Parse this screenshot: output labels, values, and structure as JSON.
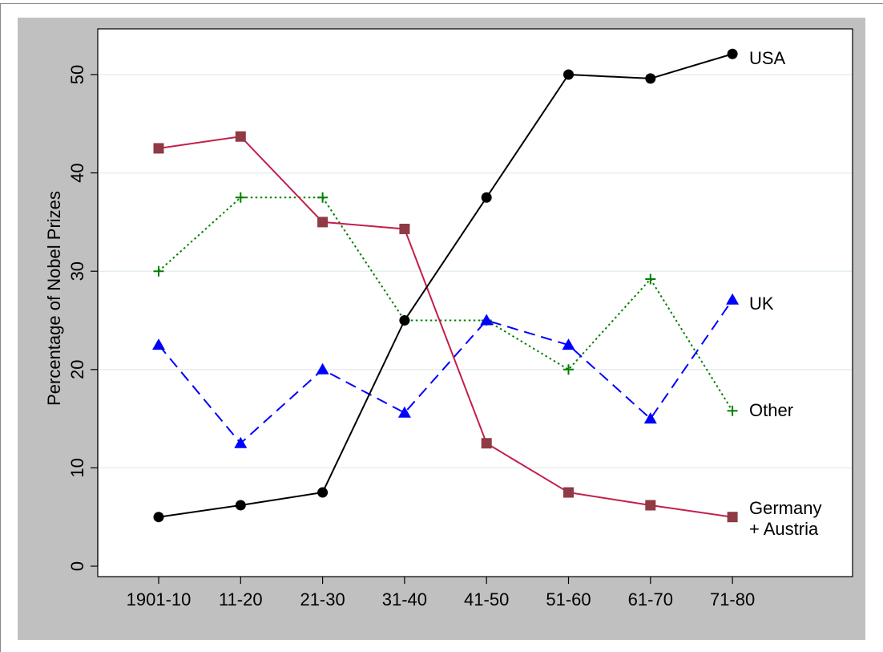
{
  "chart_data": {
    "type": "line",
    "title": "",
    "xlabel": "",
    "ylabel": "Percentage of Nobel Prizes",
    "categories": [
      "1901-10",
      "11-20",
      "21-30",
      "31-40",
      "41-50",
      "51-60",
      "61-70",
      "71-80"
    ],
    "ylim": [
      0,
      53
    ],
    "yticks": [
      0,
      10,
      20,
      30,
      40,
      50
    ],
    "grid": true,
    "legend": "none",
    "colors": {
      "outer_background": "#c0c0c0",
      "plot_background": "#ffffff",
      "gridline": "#e6efef"
    },
    "series": [
      {
        "key": "usa",
        "label_lines": [
          "USA"
        ],
        "values": [
          5,
          6.2,
          7.5,
          25,
          37.5,
          50,
          49.6,
          52.1
        ],
        "color": "#000000",
        "marker": "circle",
        "line_style": "solid"
      },
      {
        "key": "germany",
        "label_lines": [
          "Germany",
          "+ Austria"
        ],
        "values": [
          42.5,
          43.7,
          35,
          34.3,
          12.5,
          7.5,
          6.2,
          5
        ],
        "color": "#c41e4a",
        "marker_color": "#8f3a44",
        "marker": "square",
        "line_style": "solid"
      },
      {
        "key": "uk",
        "label_lines": [
          "UK"
        ],
        "values": [
          22.5,
          12.5,
          20,
          15.6,
          25,
          22.5,
          15,
          27.1
        ],
        "color": "#0000ff",
        "marker": "triangle",
        "line_style": "dashed"
      },
      {
        "key": "other",
        "label_lines": [
          "Other"
        ],
        "values": [
          30,
          37.5,
          37.5,
          25,
          25,
          20,
          29.2,
          15.8
        ],
        "color": "#008000",
        "marker": "plus",
        "line_style": "dotted"
      }
    ]
  }
}
